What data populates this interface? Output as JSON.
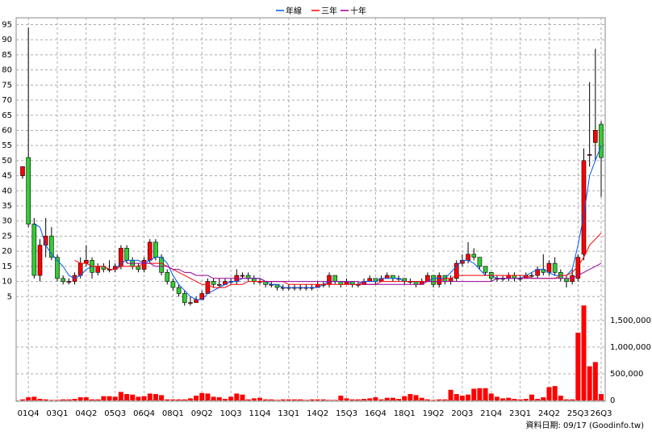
{
  "chart_data": {
    "type": "candlestick",
    "up_color": "#ff0000",
    "down_color": "#33cc33",
    "categories": [
      null,
      "01Q4",
      null,
      null,
      null,
      null,
      "03Q1",
      null,
      null,
      null,
      null,
      "04Q2",
      null,
      null,
      null,
      null,
      "05Q3",
      null,
      null,
      null,
      null,
      "06Q4",
      null,
      null,
      null,
      null,
      "08Q1",
      null,
      null,
      null,
      null,
      "09Q2",
      null,
      null,
      null,
      null,
      "10Q3",
      null,
      null,
      null,
      null,
      "11Q4",
      null,
      null,
      null,
      null,
      "13Q1",
      null,
      null,
      null,
      null,
      "14Q2",
      null,
      null,
      null,
      null,
      "15Q3",
      null,
      null,
      null,
      null,
      "16Q4",
      null,
      null,
      null,
      null,
      "18Q1",
      null,
      null,
      null,
      null,
      "19Q2",
      null,
      null,
      null,
      null,
      "20Q3",
      null,
      null,
      null,
      null,
      "21Q4",
      null,
      null,
      null,
      null,
      "23Q1",
      null,
      null,
      null,
      null,
      "24Q2",
      null,
      null,
      null,
      null,
      "25Q3",
      null,
      null,
      null,
      "26Q3"
    ],
    "candles": [
      [
        45,
        48,
        44,
        48
      ],
      [
        51,
        94,
        28,
        29
      ],
      [
        29,
        31,
        11,
        12
      ],
      [
        12,
        24,
        10,
        22
      ],
      [
        22,
        31,
        18,
        25
      ],
      [
        25,
        28,
        17,
        18
      ],
      [
        18,
        19,
        10,
        11
      ],
      [
        11,
        12,
        9,
        10
      ],
      [
        10,
        11,
        9,
        10
      ],
      [
        10,
        13,
        9,
        12
      ],
      [
        12,
        18,
        11,
        16
      ],
      [
        16,
        22,
        15,
        17
      ],
      [
        17,
        18,
        11,
        13
      ],
      [
        13,
        16,
        12,
        15
      ],
      [
        15,
        16,
        13,
        14
      ],
      [
        14,
        17,
        13,
        14
      ],
      [
        14,
        16,
        13,
        15
      ],
      [
        15,
        22,
        14,
        21
      ],
      [
        21,
        22,
        16,
        17
      ],
      [
        17,
        18,
        14,
        15
      ],
      [
        15,
        16,
        13,
        14
      ],
      [
        14,
        18,
        13,
        17
      ],
      [
        17,
        24,
        16,
        23
      ],
      [
        23,
        24,
        17,
        18
      ],
      [
        18,
        19,
        12,
        13
      ],
      [
        13,
        14,
        9,
        10
      ],
      [
        10,
        11,
        7,
        8
      ],
      [
        8,
        9,
        5,
        6
      ],
      [
        6,
        7,
        2,
        3
      ],
      [
        3,
        5,
        2,
        3
      ],
      [
        3,
        5,
        3,
        4
      ],
      [
        4,
        7,
        4,
        6
      ],
      [
        6,
        11,
        6,
        10
      ],
      [
        10,
        11,
        8,
        9
      ],
      [
        9,
        11,
        8,
        9
      ],
      [
        9,
        11,
        9,
        10
      ],
      [
        10,
        11,
        9,
        10
      ],
      [
        10,
        14,
        9,
        12
      ],
      [
        12,
        13,
        11,
        12
      ],
      [
        12,
        13,
        10,
        11
      ],
      [
        11,
        12,
        9,
        10
      ],
      [
        10,
        11,
        9,
        10
      ],
      [
        10,
        10,
        8,
        9
      ],
      [
        9,
        10,
        8,
        9
      ],
      [
        9,
        9,
        7,
        8
      ],
      [
        8,
        9,
        7,
        8
      ],
      [
        8,
        9,
        7,
        8
      ],
      [
        8,
        9,
        7,
        8
      ],
      [
        8,
        9,
        7,
        8
      ],
      [
        8,
        9,
        7,
        8
      ],
      [
        8,
        9,
        7,
        8
      ],
      [
        8,
        10,
        8,
        9
      ],
      [
        9,
        10,
        8,
        9
      ],
      [
        9,
        13,
        8,
        12
      ],
      [
        12,
        12,
        9,
        10
      ],
      [
        10,
        10,
        8,
        9
      ],
      [
        9,
        11,
        9,
        10
      ],
      [
        10,
        10,
        8,
        9
      ],
      [
        9,
        10,
        8,
        9
      ],
      [
        9,
        11,
        9,
        10
      ],
      [
        10,
        12,
        10,
        11
      ],
      [
        11,
        11,
        9,
        10
      ],
      [
        10,
        12,
        10,
        11
      ],
      [
        11,
        13,
        11,
        12
      ],
      [
        12,
        12,
        10,
        11
      ],
      [
        11,
        12,
        10,
        11
      ],
      [
        11,
        11,
        9,
        10
      ],
      [
        10,
        11,
        9,
        10
      ],
      [
        10,
        10,
        8,
        9
      ],
      [
        9,
        11,
        9,
        10
      ],
      [
        10,
        13,
        10,
        12
      ],
      [
        12,
        12,
        8,
        9
      ],
      [
        9,
        13,
        8,
        12
      ],
      [
        12,
        12,
        9,
        10
      ],
      [
        10,
        12,
        9,
        11
      ],
      [
        11,
        17,
        10,
        16
      ],
      [
        16,
        19,
        15,
        17
      ],
      [
        17,
        23,
        16,
        19
      ],
      [
        19,
        21,
        17,
        18
      ],
      [
        18,
        18,
        14,
        15
      ],
      [
        15,
        15,
        12,
        13
      ],
      [
        13,
        13,
        10,
        11
      ],
      [
        11,
        12,
        10,
        11
      ],
      [
        11,
        12,
        10,
        11
      ],
      [
        11,
        13,
        10,
        12
      ],
      [
        12,
        13,
        10,
        11
      ],
      [
        11,
        12,
        10,
        11
      ],
      [
        11,
        13,
        11,
        12
      ],
      [
        12,
        13,
        11,
        12
      ],
      [
        12,
        15,
        11,
        14
      ],
      [
        14,
        19,
        12,
        13
      ],
      [
        13,
        17,
        12,
        16
      ],
      [
        16,
        18,
        12,
        13
      ],
      [
        13,
        14,
        10,
        11
      ],
      [
        11,
        12,
        8,
        10
      ],
      [
        10,
        14,
        9,
        12
      ],
      [
        11,
        19,
        10,
        18
      ],
      [
        19,
        54,
        17,
        50
      ],
      [
        52,
        76,
        48,
        52
      ],
      [
        56,
        87,
        50,
        60
      ],
      [
        62,
        63,
        38,
        51
      ]
    ],
    "series": [
      {
        "name": "年線",
        "color": "#0055ee",
        "values": [
          null,
          null,
          29,
          28,
          22,
          19,
          17,
          15,
          12,
          11,
          12,
          14,
          15,
          15,
          15,
          14,
          14,
          16,
          17,
          17,
          17,
          16,
          17,
          18,
          18,
          16,
          12,
          9,
          7,
          5,
          4,
          4,
          6,
          7,
          8,
          9,
          10,
          10,
          11,
          11,
          11,
          11,
          10,
          9,
          9,
          8,
          8,
          8,
          8,
          8,
          8,
          8,
          9,
          10,
          10,
          10,
          10,
          9,
          9,
          10,
          10,
          10,
          11,
          11,
          11,
          11,
          10,
          10,
          10,
          10,
          10,
          11,
          11,
          11,
          13,
          15,
          17,
          17,
          16,
          14,
          12,
          12,
          11,
          11,
          11,
          11,
          11,
          12,
          13,
          14,
          14,
          13,
          12,
          12,
          12,
          14,
          22,
          32,
          45,
          50,
          55
        ]
      },
      {
        "name": "三年",
        "color": "#ff0000",
        "values": [
          null,
          null,
          null,
          null,
          null,
          null,
          null,
          null,
          null,
          17,
          16,
          16,
          15,
          15,
          15,
          14,
          14,
          15,
          15,
          15,
          15,
          16,
          16,
          16,
          16,
          15,
          14,
          13,
          12,
          11,
          10,
          9,
          9,
          8,
          8,
          8,
          9,
          9,
          9,
          10,
          10,
          10,
          10,
          10,
          10,
          10,
          9,
          9,
          9,
          9,
          9,
          9,
          9,
          9,
          9,
          9,
          9,
          9,
          9,
          9,
          9,
          9,
          10,
          10,
          10,
          10,
          10,
          10,
          10,
          10,
          10,
          10,
          10,
          11,
          11,
          12,
          12,
          12,
          12,
          12,
          12,
          12,
          12,
          12,
          12,
          12,
          12,
          12,
          11,
          11,
          11,
          11,
          11,
          12,
          12,
          13,
          15,
          18,
          22,
          24,
          26
        ]
      },
      {
        "name": "十年",
        "color": "#990099",
        "values": [
          null,
          null,
          null,
          null,
          null,
          null,
          null,
          null,
          null,
          null,
          null,
          null,
          null,
          null,
          null,
          null,
          null,
          null,
          16,
          16,
          16,
          16,
          16,
          15,
          15,
          15,
          14,
          14,
          13,
          13,
          12,
          12,
          12,
          11,
          11,
          11,
          11,
          11,
          11,
          11,
          11,
          11,
          10,
          10,
          10,
          10,
          10,
          10,
          10,
          10,
          10,
          10,
          10,
          10,
          10,
          10,
          10,
          10,
          10,
          9,
          9,
          9,
          9,
          9,
          9,
          9,
          9,
          9,
          9,
          9,
          10,
          10,
          10,
          10,
          10,
          10,
          10,
          10,
          10,
          10,
          10,
          10,
          11,
          11,
          11,
          11,
          11,
          11,
          11,
          11,
          11,
          11,
          11,
          11,
          11,
          11,
          12,
          13,
          14,
          15,
          16
        ]
      }
    ],
    "volume": {
      "color": "#ff0000",
      "values": [
        20000,
        60000,
        70000,
        30000,
        20000,
        10000,
        10000,
        20000,
        20000,
        30000,
        60000,
        60000,
        20000,
        20000,
        80000,
        80000,
        70000,
        160000,
        120000,
        110000,
        70000,
        80000,
        130000,
        120000,
        100000,
        20000,
        20000,
        20000,
        20000,
        40000,
        90000,
        140000,
        130000,
        70000,
        60000,
        30000,
        70000,
        130000,
        110000,
        20000,
        40000,
        50000,
        20000,
        20000,
        10000,
        20000,
        20000,
        20000,
        20000,
        10000,
        20000,
        20000,
        20000,
        10000,
        10000,
        90000,
        40000,
        20000,
        20000,
        30000,
        40000,
        60000,
        20000,
        50000,
        50000,
        30000,
        80000,
        120000,
        100000,
        50000,
        20000,
        10000,
        20000,
        20000,
        200000,
        120000,
        90000,
        110000,
        220000,
        230000,
        230000,
        130000,
        70000,
        40000,
        50000,
        30000,
        20000,
        30000,
        110000,
        30000,
        60000,
        250000,
        270000,
        90000,
        20000,
        20000,
        1270000,
        1780000,
        640000,
        720000,
        120000
      ]
    },
    "ylim": [
      0,
      97
    ],
    "yticks": [
      5,
      10,
      15,
      20,
      25,
      30,
      35,
      40,
      45,
      50,
      55,
      60,
      65,
      70,
      75,
      80,
      85,
      90,
      95
    ],
    "y2lim": [
      0,
      1800000
    ],
    "y2ticks": [
      0,
      {
        "value": 500000,
        "label": "500,000"
      },
      {
        "value": 1000000,
        "label": "1,000,000"
      },
      {
        "value": 1500000,
        "label": "1,500,000"
      }
    ],
    "grid": true,
    "source": "資料日期: 09/17 (Goodinfo.tw)"
  }
}
